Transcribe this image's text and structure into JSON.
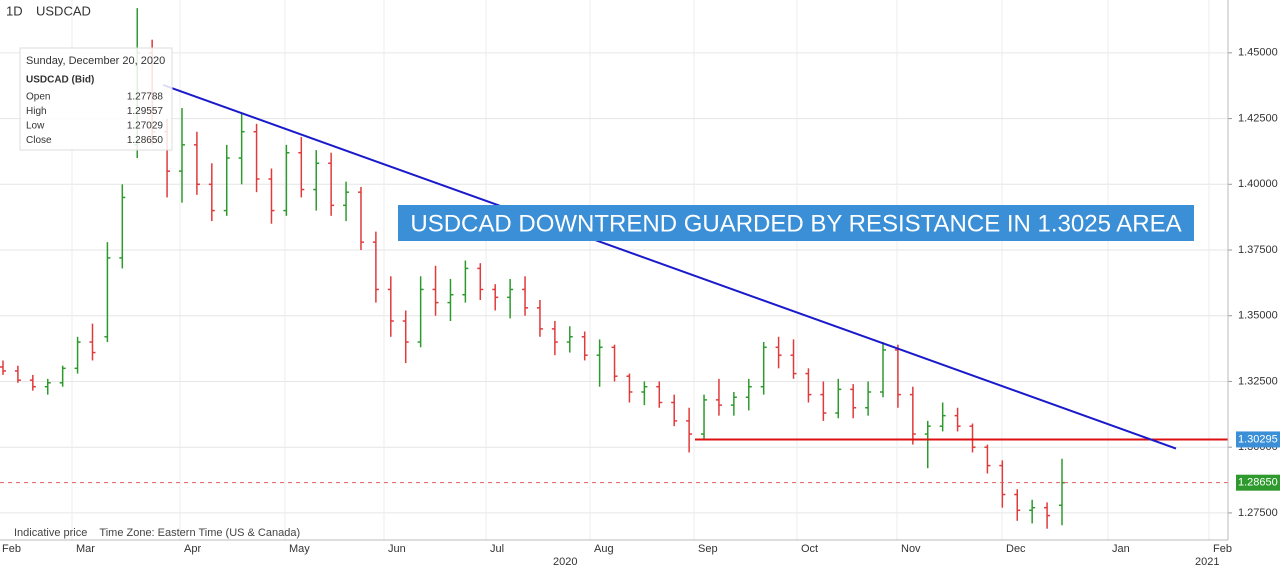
{
  "chart_data": {
    "type": "ohlc",
    "timeframe": "1D",
    "symbol": "USDCAD",
    "annotation": "USDCAD DOWNTREND GUARDED BY RESISTANCE IN 1.3025 AREA",
    "footer": "Indicative price    Time Zone: Eastern Time (US & Canada)",
    "months": [
      "Feb",
      "Mar",
      "Apr",
      "May",
      "Jun",
      "Jul",
      "Aug",
      "Sep",
      "Oct",
      "Nov",
      "Dec",
      "Jan",
      "Feb"
    ],
    "years": [
      "2020",
      "2021"
    ],
    "up_color": "#2e9a2e",
    "down_color": "#e03a3a",
    "open": [
      1.3305,
      1.329,
      1.3255,
      1.323,
      1.3245,
      1.33,
      1.34,
      1.342,
      1.372,
      1.415,
      1.45,
      1.42,
      1.405,
      1.415,
      1.4,
      1.39,
      1.41,
      1.42,
      1.402,
      1.39,
      1.412,
      1.398,
      1.408,
      1.392,
      1.397,
      1.378,
      1.36,
      1.348,
      1.34,
      1.36,
      1.355,
      1.358,
      1.368,
      1.36,
      1.357,
      1.36,
      1.353,
      1.345,
      1.34,
      1.342,
      1.335,
      1.338,
      1.327,
      1.321,
      1.323,
      1.317,
      1.31,
      1.305,
      1.318,
      1.316,
      1.319,
      1.323,
      1.338,
      1.335,
      1.328,
      1.32,
      1.313,
      1.322,
      1.315,
      1.321,
      1.337,
      1.32,
      1.305,
      1.308,
      1.312,
      1.308,
      1.3,
      1.293,
      1.282,
      1.276,
      1.277,
      1.2779
    ],
    "high": [
      1.333,
      1.331,
      1.3275,
      1.326,
      1.331,
      1.342,
      1.347,
      1.378,
      1.4,
      1.467,
      1.455,
      1.425,
      1.429,
      1.42,
      1.408,
      1.415,
      1.427,
      1.423,
      1.406,
      1.415,
      1.418,
      1.413,
      1.412,
      1.401,
      1.399,
      1.382,
      1.365,
      1.352,
      1.365,
      1.369,
      1.364,
      1.371,
      1.37,
      1.362,
      1.364,
      1.365,
      1.356,
      1.348,
      1.346,
      1.344,
      1.341,
      1.339,
      1.328,
      1.325,
      1.325,
      1.32,
      1.315,
      1.32,
      1.326,
      1.321,
      1.326,
      1.34,
      1.342,
      1.341,
      1.33,
      1.325,
      1.326,
      1.324,
      1.325,
      1.34,
      1.339,
      1.323,
      1.31,
      1.317,
      1.315,
      1.309,
      1.301,
      1.295,
      1.284,
      1.28,
      1.279,
      1.2956
    ],
    "low": [
      1.3275,
      1.3245,
      1.3215,
      1.32,
      1.323,
      1.328,
      1.333,
      1.34,
      1.368,
      1.41,
      1.415,
      1.395,
      1.393,
      1.396,
      1.386,
      1.388,
      1.4,
      1.397,
      1.385,
      1.388,
      1.395,
      1.39,
      1.388,
      1.386,
      1.375,
      1.355,
      1.342,
      1.332,
      1.338,
      1.35,
      1.348,
      1.355,
      1.356,
      1.352,
      1.349,
      1.35,
      1.342,
      1.335,
      1.336,
      1.333,
      1.323,
      1.325,
      1.317,
      1.316,
      1.315,
      1.308,
      1.298,
      1.303,
      1.312,
      1.312,
      1.314,
      1.32,
      1.33,
      1.326,
      1.317,
      1.31,
      1.311,
      1.311,
      1.312,
      1.319,
      1.315,
      1.301,
      1.292,
      1.306,
      1.306,
      1.298,
      1.29,
      1.277,
      1.272,
      1.271,
      1.269,
      1.2703
    ],
    "close": [
      1.329,
      1.3255,
      1.323,
      1.3245,
      1.33,
      1.34,
      1.336,
      1.372,
      1.395,
      1.45,
      1.42,
      1.405,
      1.415,
      1.4,
      1.39,
      1.41,
      1.42,
      1.402,
      1.39,
      1.412,
      1.398,
      1.408,
      1.392,
      1.397,
      1.378,
      1.36,
      1.348,
      1.34,
      1.36,
      1.355,
      1.358,
      1.368,
      1.36,
      1.357,
      1.36,
      1.353,
      1.345,
      1.34,
      1.342,
      1.335,
      1.338,
      1.327,
      1.321,
      1.323,
      1.317,
      1.31,
      1.305,
      1.318,
      1.316,
      1.319,
      1.323,
      1.338,
      1.335,
      1.328,
      1.32,
      1.313,
      1.322,
      1.315,
      1.321,
      1.337,
      1.32,
      1.305,
      1.308,
      1.312,
      1.308,
      1.3,
      1.293,
      1.282,
      1.276,
      1.277,
      1.274,
      1.2865
    ],
    "ylim": [
      1.2647,
      1.4701
    ],
    "yticks": [
      {
        "value": 1.275,
        "label": "1.27500"
      },
      {
        "value": 1.3,
        "label": "1.30000"
      },
      {
        "value": 1.325,
        "label": "1.32500"
      },
      {
        "value": 1.35,
        "label": "1.35000"
      },
      {
        "value": 1.375,
        "label": "1.37500"
      },
      {
        "value": 1.4,
        "label": "1.40000"
      },
      {
        "value": 1.425,
        "label": "1.42500"
      },
      {
        "value": 1.45,
        "label": "1.45000"
      }
    ],
    "grid": true,
    "trendline": {
      "values": [
        1.4378,
        1.2995
      ],
      "color": "#1a1acc"
    },
    "resistance": {
      "value": 1.30295,
      "color": "#dd1111",
      "tag_color": "#3a8fd6"
    },
    "current_price": {
      "value": 1.2865,
      "label": "1.28650",
      "color": "#e06060",
      "tag_color": "#2e9a2e"
    },
    "tooltip": {
      "date": "Sunday, December 20, 2020",
      "series": "USDCAD (Bid)",
      "rows": [
        [
          "Open",
          "1.27788"
        ],
        [
          "High",
          "1.29557"
        ],
        [
          "Low",
          "1.27029"
        ],
        [
          "Close",
          "1.28650"
        ]
      ]
    }
  }
}
